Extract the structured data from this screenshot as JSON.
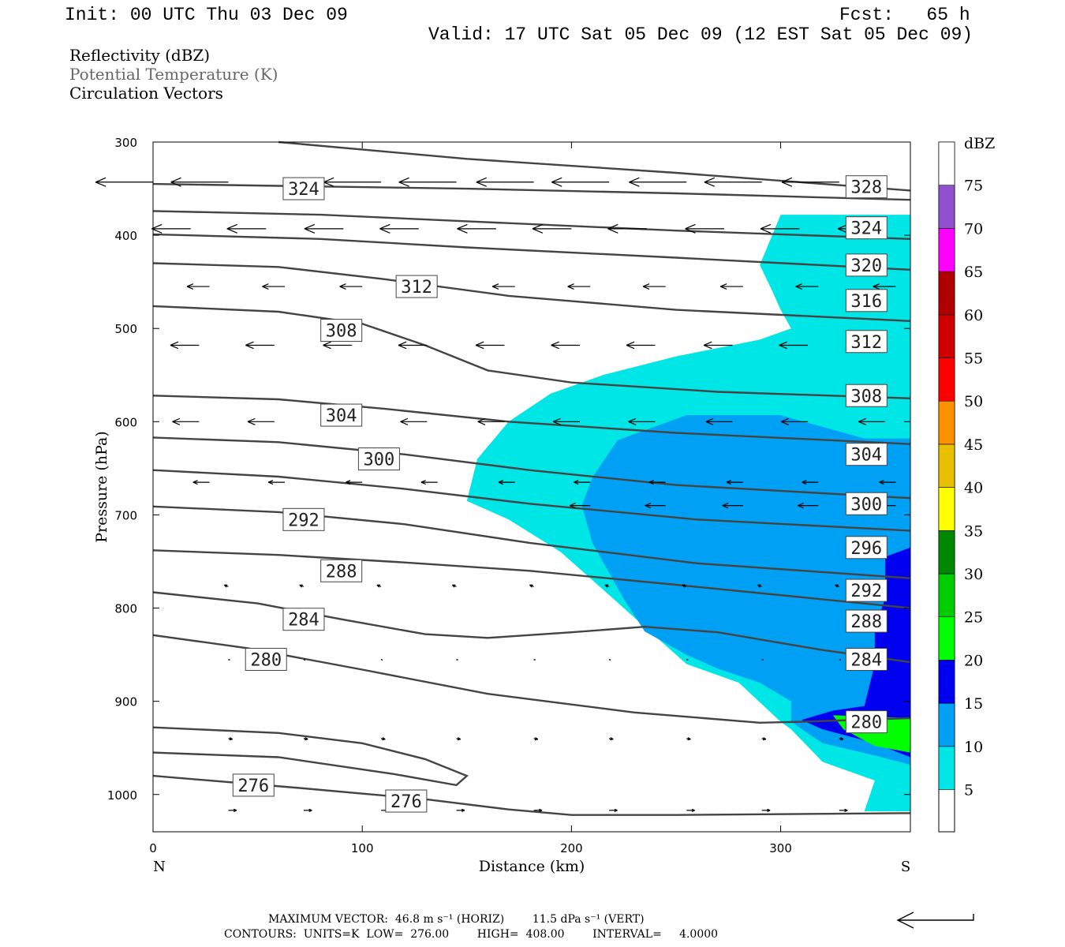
{
  "header": {
    "init": "Init: 00 UTC Thu 03 Dec 09",
    "fcst": "Fcst:   65 h",
    "valid": "Valid: 17 UTC Sat 05 Dec 09 (12 EST Sat 05 Dec 09)"
  },
  "fields": {
    "reflectivity": "Reflectivity (dBZ)",
    "theta": "Potential Temperature (K)",
    "vectors": "Circulation Vectors"
  },
  "footer": {
    "max_vector": "MAXIMUM VECTOR:  46.8 m s⁻¹ (HORIZ)        11.5 dPa s⁻¹ (VERT)",
    "contours": "CONTOURS:  UNITS=K  LOW=  276.00        HIGH=  408.00        INTERVAL=     4.0000"
  },
  "chart_data": {
    "type": "contour",
    "xlabel": "Distance (km)",
    "ylabel": "Pressure (hPa)",
    "xlim": [
      0,
      362
    ],
    "ylim": [
      300,
      1040
    ],
    "x_ticks": [
      "0",
      "100",
      "200",
      "300"
    ],
    "y_ticks": [
      "300",
      "400",
      "500",
      "600",
      "700",
      "800",
      "900",
      "1000"
    ],
    "x_end_labels": {
      "left": "N",
      "right": "S"
    },
    "colorbar": {
      "title": "dBZ",
      "levels": [
        "5",
        "10",
        "15",
        "20",
        "25",
        "30",
        "35",
        "40",
        "45",
        "50",
        "55",
        "60",
        "65",
        "70",
        "75"
      ],
      "colors": [
        "#00e5e5",
        "#00a0f5",
        "#0000f0",
        "#00ff00",
        "#00cc00",
        "#008800",
        "#ffff00",
        "#e8c000",
        "#ff9000",
        "#ff0000",
        "#d00000",
        "#b00000",
        "#ff00ff",
        "#9050d0",
        "#ffffff"
      ]
    },
    "reflectivity_regions": [
      {
        "dbz": 5,
        "points": [
          [
            300,
            378
          ],
          [
            362,
            378
          ],
          [
            362,
            1018
          ],
          [
            340,
            1018
          ],
          [
            345,
            985
          ],
          [
            320,
            965
          ],
          [
            305,
            930
          ],
          [
            300,
            922
          ],
          [
            280,
            880
          ],
          [
            255,
            860
          ],
          [
            235,
            820
          ],
          [
            215,
            780
          ],
          [
            195,
            740
          ],
          [
            170,
            705
          ],
          [
            150,
            685
          ],
          [
            155,
            640
          ],
          [
            170,
            600
          ],
          [
            190,
            570
          ],
          [
            215,
            550
          ],
          [
            250,
            530
          ],
          [
            290,
            512
          ],
          [
            305,
            500
          ],
          [
            300,
            480
          ],
          [
            295,
            455
          ],
          [
            290,
            432
          ]
        ]
      },
      {
        "dbz": 10,
        "points": [
          [
            255,
            593
          ],
          [
            300,
            593
          ],
          [
            340,
            618
          ],
          [
            362,
            618
          ],
          [
            362,
            968
          ],
          [
            345,
            958
          ],
          [
            320,
            945
          ],
          [
            305,
            922
          ],
          [
            305,
            900
          ],
          [
            290,
            880
          ],
          [
            270,
            865
          ],
          [
            255,
            850
          ],
          [
            235,
            825
          ],
          [
            225,
            790
          ],
          [
            210,
            730
          ],
          [
            205,
            690
          ],
          [
            210,
            660
          ],
          [
            222,
            620
          ]
        ]
      },
      {
        "dbz": 15,
        "points": [
          [
            350,
            745
          ],
          [
            362,
            735
          ],
          [
            362,
            960
          ],
          [
            345,
            945
          ],
          [
            320,
            930
          ],
          [
            310,
            920
          ],
          [
            325,
            910
          ],
          [
            340,
            905
          ],
          [
            345,
            860
          ],
          [
            345,
            820
          ],
          [
            350,
            790
          ]
        ]
      },
      {
        "dbz": 20,
        "points": [
          [
            325,
            915
          ],
          [
            362,
            918
          ],
          [
            362,
            955
          ],
          [
            345,
            948
          ],
          [
            330,
            930
          ]
        ]
      }
    ],
    "theta_contours": [
      {
        "label": "324",
        "points": [
          [
            0,
            345
          ],
          [
            60,
            347
          ],
          [
            150,
            350
          ],
          [
            250,
            355
          ],
          [
            362,
            362
          ]
        ]
      },
      {
        "label": "328",
        "points": [
          [
            60,
            300
          ],
          [
            150,
            318
          ],
          [
            250,
            333
          ],
          [
            362,
            352
          ]
        ]
      },
      {
        "label": "324",
        "points": [
          [
            0,
            374
          ],
          [
            80,
            378
          ],
          [
            150,
            385
          ],
          [
            250,
            395
          ],
          [
            362,
            404
          ]
        ]
      },
      {
        "label": "320",
        "points": [
          [
            0,
            399
          ],
          [
            80,
            404
          ],
          [
            150,
            413
          ],
          [
            250,
            424
          ],
          [
            362,
            437
          ]
        ]
      },
      {
        "label": "316",
        "points": [
          [
            0,
            430
          ],
          [
            60,
            434
          ],
          [
            110,
            447
          ],
          [
            170,
            465
          ],
          [
            250,
            480
          ],
          [
            362,
            492
          ]
        ]
      },
      {
        "label": "312",
        "points": [
          [
            0,
            476
          ],
          [
            60,
            482
          ],
          [
            100,
            495
          ],
          [
            130,
            518
          ],
          [
            160,
            545
          ],
          [
            200,
            558
          ],
          [
            270,
            568
          ],
          [
            362,
            575
          ]
        ]
      },
      {
        "label": "308",
        "points": [
          [
            0,
            572
          ],
          [
            60,
            576
          ],
          [
            110,
            586
          ],
          [
            170,
            600
          ],
          [
            250,
            612
          ],
          [
            362,
            624
          ]
        ]
      },
      {
        "label": "304",
        "points": [
          [
            0,
            617
          ],
          [
            60,
            622
          ],
          [
            120,
            635
          ],
          [
            180,
            652
          ],
          [
            250,
            668
          ],
          [
            362,
            682
          ]
        ]
      },
      {
        "label": "300",
        "points": [
          [
            0,
            652
          ],
          [
            60,
            659
          ],
          [
            120,
            672
          ],
          [
            180,
            688
          ],
          [
            260,
            705
          ],
          [
            362,
            717
          ]
        ]
      },
      {
        "label": "296",
        "points": [
          [
            0,
            691
          ],
          [
            60,
            697
          ],
          [
            120,
            710
          ],
          [
            180,
            730
          ],
          [
            260,
            752
          ],
          [
            362,
            768
          ]
        ]
      },
      {
        "label": "292",
        "points": [
          [
            0,
            738
          ],
          [
            60,
            743
          ],
          [
            120,
            751
          ],
          [
            180,
            760
          ],
          [
            250,
            775
          ],
          [
            362,
            800
          ]
        ]
      },
      {
        "label": "288",
        "points": [
          [
            0,
            783
          ],
          [
            50,
            795
          ],
          [
            90,
            812
          ],
          [
            130,
            828
          ],
          [
            160,
            832
          ],
          [
            200,
            826
          ],
          [
            235,
            820
          ],
          [
            270,
            826
          ],
          [
            320,
            845
          ],
          [
            362,
            858
          ]
        ]
      },
      {
        "label": "284",
        "points": [
          [
            0,
            829
          ],
          [
            45,
            843
          ],
          [
            100,
            866
          ],
          [
            160,
            892
          ],
          [
            230,
            912
          ],
          [
            290,
            923
          ],
          [
            310,
            922
          ],
          [
            362,
            918
          ]
        ]
      },
      {
        "label": "280",
        "points": [
          [
            0,
            928
          ],
          [
            60,
            934
          ],
          [
            100,
            945
          ],
          [
            130,
            962
          ],
          [
            150,
            980
          ],
          [
            145,
            990
          ],
          [
            115,
            978
          ],
          [
            60,
            960
          ],
          [
            0,
            955
          ]
        ]
      },
      {
        "label": "276",
        "points": [
          [
            0,
            980
          ],
          [
            70,
            993
          ],
          [
            130,
            1005
          ],
          [
            170,
            1016
          ],
          [
            200,
            1022
          ],
          [
            250,
            1022
          ],
          [
            362,
            1020
          ]
        ]
      }
    ],
    "contour_labels": [
      {
        "text": "324",
        "x": 72,
        "p": 350
      },
      {
        "text": "328",
        "x": 341,
        "p": 348
      },
      {
        "text": "324",
        "x": 341,
        "p": 392
      },
      {
        "text": "320",
        "x": 341,
        "p": 432
      },
      {
        "text": "316",
        "x": 341,
        "p": 470
      },
      {
        "text": "312",
        "x": 126,
        "p": 455
      },
      {
        "text": "312",
        "x": 341,
        "p": 514
      },
      {
        "text": "308",
        "x": 90,
        "p": 502
      },
      {
        "text": "308",
        "x": 341,
        "p": 572
      },
      {
        "text": "304",
        "x": 90,
        "p": 593
      },
      {
        "text": "304",
        "x": 341,
        "p": 635
      },
      {
        "text": "300",
        "x": 108,
        "p": 640
      },
      {
        "text": "300",
        "x": 341,
        "p": 688
      },
      {
        "text": "296",
        "x": 341,
        "p": 735
      },
      {
        "text": "292",
        "x": 72,
        "p": 705
      },
      {
        "text": "292",
        "x": 341,
        "p": 781
      },
      {
        "text": "288",
        "x": 90,
        "p": 760
      },
      {
        "text": "288",
        "x": 341,
        "p": 814
      },
      {
        "text": "284",
        "x": 72,
        "p": 812
      },
      {
        "text": "284",
        "x": 341,
        "p": 855
      },
      {
        "text": "280",
        "x": 54,
        "p": 855
      },
      {
        "text": "280",
        "x": 341,
        "p": 922
      },
      {
        "text": "276",
        "x": 48,
        "p": 990
      },
      {
        "text": "276",
        "x": 121,
        "p": 1007
      }
    ],
    "vectors": [
      {
        "p": 343,
        "xs": [
          0,
          36,
          109,
          145,
          182,
          218,
          255,
          291,
          328
        ],
        "u": 28,
        "w": 0
      },
      {
        "p": 393,
        "xs": [
          18,
          54,
          91,
          127,
          164,
          200,
          236,
          273,
          309,
          346
        ],
        "u": 19,
        "w": 0
      },
      {
        "p": 455,
        "xs": [
          27,
          63,
          100,
          136,
          173,
          209,
          245,
          282,
          318,
          355
        ],
        "u": 11,
        "w": 0
      },
      {
        "p": 518,
        "xs": [
          22,
          58,
          95,
          131,
          168,
          204,
          240,
          277,
          313,
          350
        ],
        "u": 14,
        "w": 0
      },
      {
        "p": 600,
        "xs": [
          22,
          58,
          95,
          131,
          168,
          204,
          240,
          277,
          313,
          350
        ],
        "u": 13,
        "w": 0
      },
      {
        "p": 665,
        "xs": [
          27,
          63,
          100,
          136,
          173,
          209,
          245,
          282,
          318,
          355
        ],
        "u": 8,
        "w": 0
      },
      {
        "p": 690,
        "xs": [
          209,
          245,
          282,
          318,
          355
        ],
        "u": 10,
        "w": 0
      },
      {
        "p": 777,
        "xs": [
          36,
          72,
          109,
          145,
          182,
          218,
          255,
          291,
          328
        ],
        "u": 2,
        "w": 0.5
      },
      {
        "p": 855,
        "xs": [
          36,
          72,
          109,
          145,
          182,
          218,
          255,
          291,
          328
        ],
        "u": -1,
        "w": -0.3
      },
      {
        "p": 940,
        "xs": [
          36,
          72,
          109,
          145,
          182,
          218,
          255,
          291,
          328
        ],
        "u": -2,
        "w": -0.2
      },
      {
        "p": 1017,
        "xs": [
          36,
          72,
          109,
          145,
          182,
          218,
          255,
          291,
          328
        ],
        "u": -4,
        "w": 0
      }
    ]
  }
}
